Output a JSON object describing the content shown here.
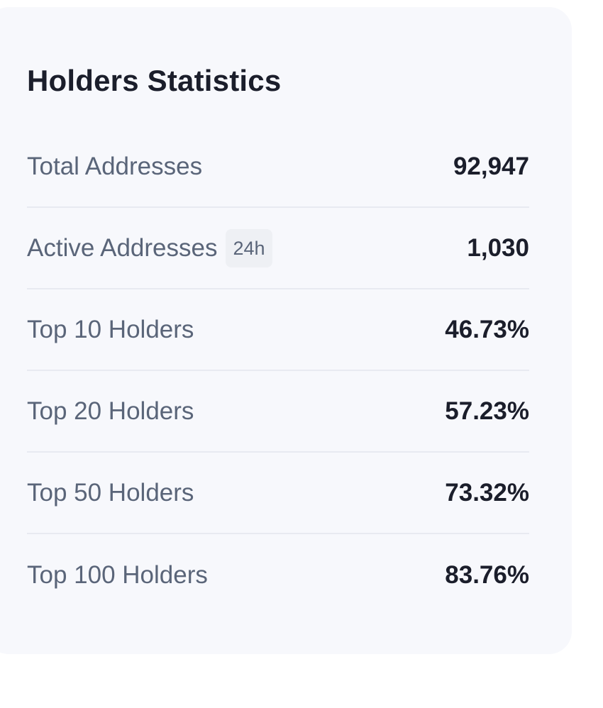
{
  "card": {
    "title": "Holders Statistics"
  },
  "stats": [
    {
      "label": "Total Addresses",
      "value": "92,947"
    },
    {
      "label": "Active Addresses",
      "badge": "24h",
      "value": "1,030"
    },
    {
      "label": "Top 10 Holders",
      "value": "46.73%"
    },
    {
      "label": "Top 20 Holders",
      "value": "57.23%"
    },
    {
      "label": "Top 50 Holders",
      "value": "73.32%"
    },
    {
      "label": "Top 100 Holders",
      "value": "83.76%"
    }
  ],
  "colors": {
    "card_background": "#f7f8fc",
    "label_text": "#5a6579",
    "value_text": "#1b1e2b",
    "divider": "#e8eaf1",
    "badge_background": "#eef0f4"
  }
}
